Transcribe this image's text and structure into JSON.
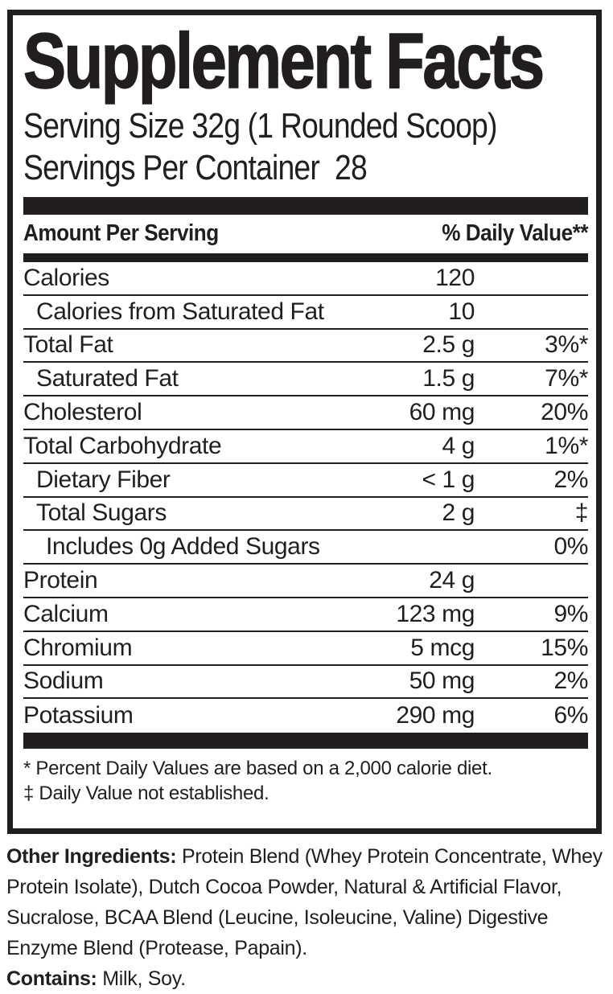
{
  "panel": {
    "title": "Supplement Facts",
    "serving_size": "Serving Size 32g (1 Rounded Scoop)",
    "servings_per_container": "Servings Per Container  28",
    "columns": {
      "amount_per_serving": "Amount Per Serving",
      "daily_value": "% Daily Value**"
    },
    "rows": [
      {
        "name": "Calories",
        "amount": "120",
        "dv": "",
        "indent": 0
      },
      {
        "name": "Calories from Saturated Fat",
        "amount": "10",
        "dv": "",
        "indent": 1
      },
      {
        "name": "Total Fat",
        "amount": "2.5 g",
        "dv": "3%*",
        "indent": 0
      },
      {
        "name": "Saturated Fat",
        "amount": "1.5 g",
        "dv": "7%*",
        "indent": 1
      },
      {
        "name": "Cholesterol",
        "amount": "60 mg",
        "dv": "20%",
        "indent": 0
      },
      {
        "name": "Total Carbohydrate",
        "amount": "4 g",
        "dv": "1%*",
        "indent": 0
      },
      {
        "name": "Dietary Fiber",
        "amount": "< 1 g",
        "dv": "2%",
        "indent": 1
      },
      {
        "name": "Total Sugars",
        "amount": "2 g",
        "dv": "‡",
        "indent": 1
      },
      {
        "name": "Includes 0g Added Sugars",
        "amount": "",
        "dv": "0%",
        "indent": 2
      },
      {
        "name": "Protein",
        "amount": "24 g",
        "dv": "",
        "indent": 0
      },
      {
        "name": "Calcium",
        "amount": "123 mg",
        "dv": "9%",
        "indent": 0
      },
      {
        "name": "Chromium",
        "amount": "5 mcg",
        "dv": "15%",
        "indent": 0
      },
      {
        "name": "Sodium",
        "amount": "50 mg",
        "dv": "2%",
        "indent": 0
      },
      {
        "name": "Potassium",
        "amount": "290 mg",
        "dv": "6%",
        "indent": 0
      }
    ],
    "footnotes": [
      "* Percent Daily Values are based on a 2,000 calorie diet.",
      "‡ Daily Value not established."
    ]
  },
  "ingredients": {
    "lead": "Other Ingredients:",
    "text": " Protein Blend (Whey Protein Concentrate, Whey Protein Isolate), Dutch Cocoa Powder, Natural & Artificial Flavor, Sucralose, BCAA Blend (Leucine, Isoleucine, Valine) Digestive Enzyme Blend (Protease, Papain)."
  },
  "contains": {
    "lead": "Contains:",
    "text": " Milk, Soy."
  },
  "colors": {
    "ink": "#221e1f",
    "background": "#ffffff"
  }
}
